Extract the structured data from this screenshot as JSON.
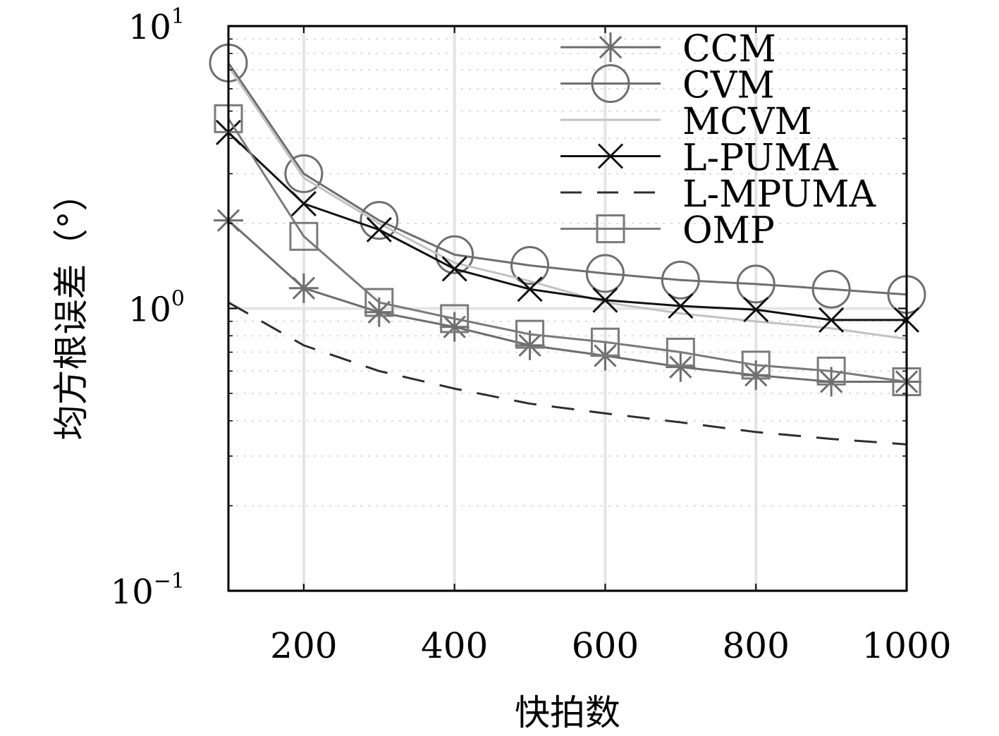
{
  "chart_data": {
    "type": "line",
    "xlabel": "快拍数",
    "ylabel": "均方根误差（°）",
    "xlim": [
      100,
      1000
    ],
    "ylim": [
      0.1,
      10
    ],
    "yscale": "log",
    "grid": true,
    "legend_position": "top-right",
    "x": [
      100,
      200,
      300,
      400,
      500,
      600,
      700,
      800,
      900,
      1000
    ],
    "x_ticks": [
      "200",
      "400",
      "600",
      "800",
      "1000"
    ],
    "y_ticks": [
      {
        "base": "10",
        "exp": "1"
      },
      {
        "base": "10",
        "exp": "0"
      },
      {
        "base": "10",
        "exp": "−1"
      }
    ],
    "series": [
      {
        "name": "CCM",
        "values": [
          2.05,
          1.18,
          0.97,
          0.86,
          0.74,
          0.68,
          0.62,
          0.58,
          0.55,
          0.55
        ],
        "color": "#6e6e6e",
        "marker": "asterisk",
        "dash": "solid",
        "width": 3
      },
      {
        "name": "CVM",
        "values": [
          7.4,
          3.0,
          2.05,
          1.55,
          1.42,
          1.33,
          1.26,
          1.22,
          1.17,
          1.12
        ],
        "color": "#6e6e6e",
        "marker": "circle",
        "dash": "solid",
        "width": 3
      },
      {
        "name": "MCVM",
        "values": [
          7.2,
          2.9,
          2.0,
          1.45,
          1.25,
          1.05,
          0.96,
          0.9,
          0.85,
          0.78
        ],
        "color": "#c2c2c2",
        "marker": "none",
        "dash": "solid",
        "width": 3
      },
      {
        "name": "L-PUMA",
        "values": [
          4.2,
          2.35,
          1.9,
          1.38,
          1.17,
          1.07,
          1.02,
          0.99,
          0.91,
          0.91
        ],
        "color": "#111111",
        "marker": "x",
        "dash": "solid",
        "width": 3
      },
      {
        "name": "L-MPUMA",
        "values": [
          1.05,
          0.74,
          0.6,
          0.52,
          0.46,
          0.425,
          0.395,
          0.365,
          0.345,
          0.33
        ],
        "color": "#2e2e2e",
        "marker": "none",
        "dash": "dashed",
        "width": 3
      },
      {
        "name": "OMP",
        "values": [
          4.7,
          1.8,
          1.05,
          0.92,
          0.81,
          0.76,
          0.7,
          0.63,
          0.6,
          0.55
        ],
        "color": "#7a7a7a",
        "marker": "square",
        "dash": "solid",
        "width": 3
      }
    ]
  }
}
